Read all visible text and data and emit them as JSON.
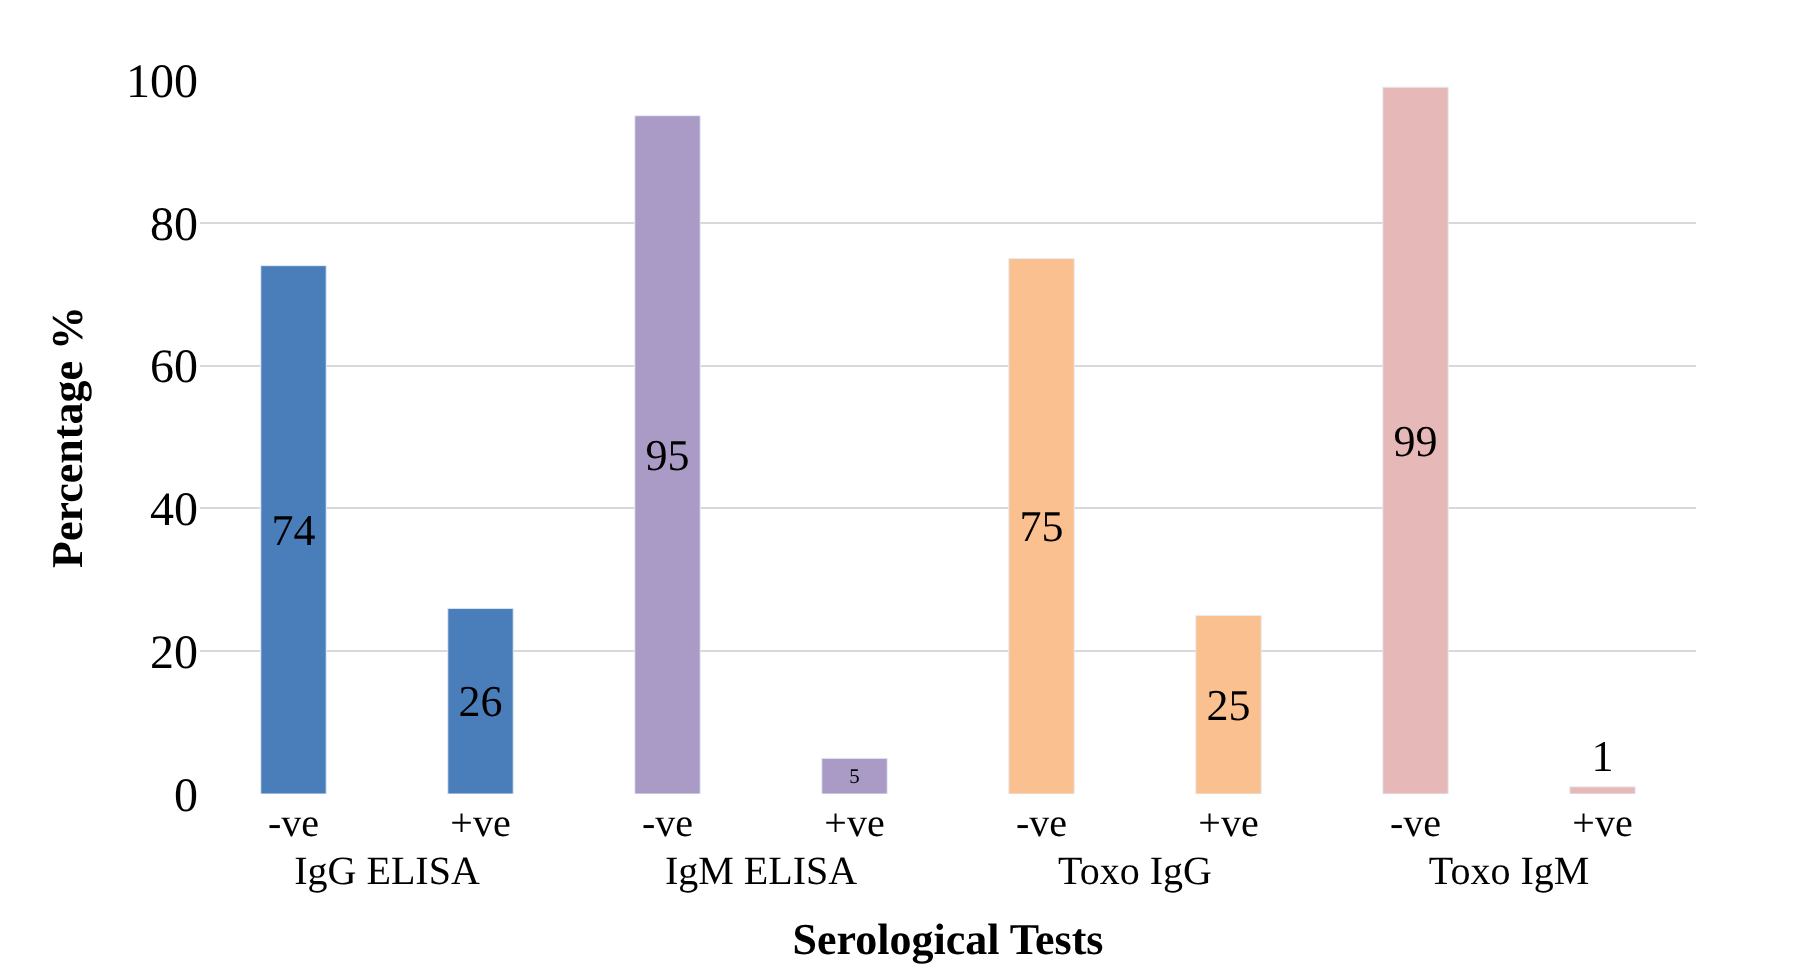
{
  "chart_data": {
    "type": "bar",
    "xlabel": "Serological Tests",
    "ylabel": "Percentage %",
    "categories": [
      "IgG ELISA",
      "IgM ELISA",
      "Toxo IgG",
      "Toxo IgM"
    ],
    "series": [
      {
        "name": "-ve",
        "colors": [
          "#4a7ebb",
          "#a99bc6",
          "#fac090",
          "#e6b9b8"
        ],
        "values": [
          74,
          95,
          75,
          99
        ]
      },
      {
        "name": "+ve",
        "colors": [
          "#4a7ebb",
          "#a99bc6",
          "#fac090",
          "#e6b9b8"
        ],
        "values": [
          26,
          5,
          25,
          1
        ]
      }
    ],
    "ylim": [
      0,
      100
    ],
    "yticks": [
      0,
      20,
      40,
      60,
      80,
      100
    ],
    "grid": "y",
    "data_labels": true
  }
}
